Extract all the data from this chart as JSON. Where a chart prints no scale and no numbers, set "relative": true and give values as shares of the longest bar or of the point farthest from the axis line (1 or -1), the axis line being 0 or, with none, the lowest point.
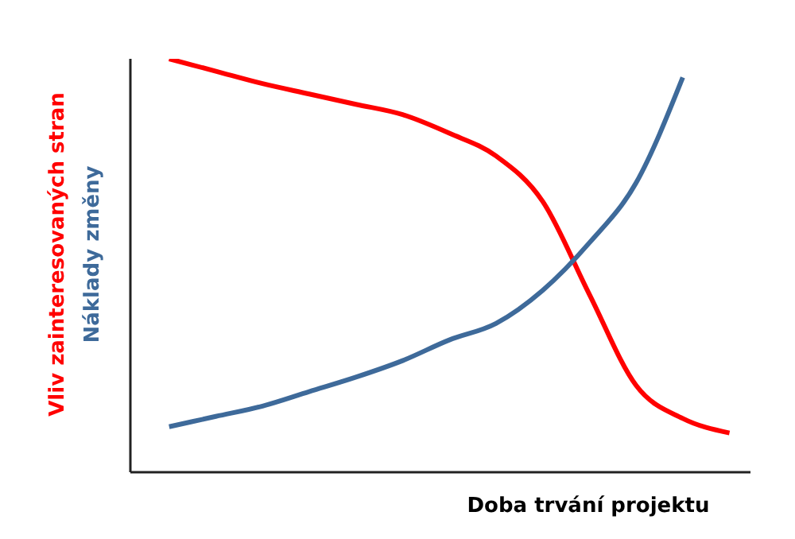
{
  "chart_data": {
    "type": "line",
    "relative": true,
    "xlabel": "Doba trvání projektu",
    "marker": "none",
    "line_style": "solid",
    "grid": false,
    "categories": [
      null,
      null,
      null,
      null,
      null,
      null,
      null,
      null,
      null,
      null,
      null,
      null,
      null
    ],
    "series": [
      {
        "name": "Vliv zainteresovaných stran",
        "color": "#ff0000",
        "values": [
          1.0,
          0.97,
          0.94,
          0.915,
          0.89,
          0.865,
          0.82,
          0.765,
          0.655,
          0.43,
          0.21,
          0.13,
          0.095
        ]
      },
      {
        "name": "Náklady změny",
        "color": "#3e6a9a",
        "values": [
          0.11,
          0.135,
          0.16,
          0.195,
          0.23,
          0.27,
          0.32,
          0.36,
          0.44,
          0.555,
          0.7,
          0.955,
          null
        ]
      }
    ]
  }
}
